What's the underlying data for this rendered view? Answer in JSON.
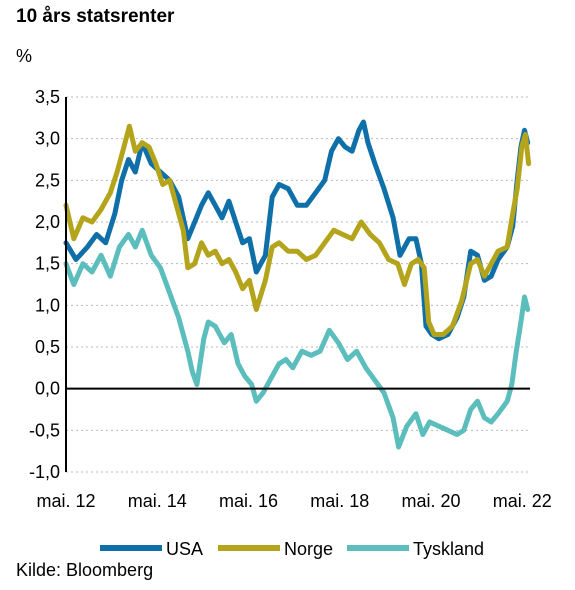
{
  "title": "10 års statsrenter",
  "unit": "%",
  "source": "Kilde: Bloomberg",
  "chart_data": {
    "type": "line",
    "title": "10 års statsrenter",
    "ylabel": "%",
    "xlabel": "",
    "ylim": [
      -1.0,
      3.5
    ],
    "xlim": [
      2012.33,
      2022.5
    ],
    "grid": "horizontal dashed",
    "legend": "bottom",
    "y_ticks": [
      "3,5",
      "3,0",
      "2,5",
      "2,0",
      "1,5",
      "1,0",
      "0,5",
      "0,0",
      "-0,5",
      "-1,0"
    ],
    "y_tick_values": [
      3.5,
      3.0,
      2.5,
      2.0,
      1.5,
      1.0,
      0.5,
      0.0,
      -0.5,
      -1.0
    ],
    "x_ticks": [
      "mai. 12",
      "mai. 14",
      "mai. 16",
      "mai. 18",
      "mai. 20",
      "mai. 22"
    ],
    "x_tick_values": [
      2012.33,
      2014.33,
      2016.33,
      2018.33,
      2020.33,
      2022.33
    ],
    "series": [
      {
        "name": "USA",
        "color": "#0f6fa8",
        "points": [
          [
            2012.33,
            1.75
          ],
          [
            2012.55,
            1.55
          ],
          [
            2012.8,
            1.7
          ],
          [
            2013.0,
            1.85
          ],
          [
            2013.2,
            1.75
          ],
          [
            2013.4,
            2.1
          ],
          [
            2013.55,
            2.5
          ],
          [
            2013.7,
            2.75
          ],
          [
            2013.85,
            2.6
          ],
          [
            2014.0,
            2.95
          ],
          [
            2014.2,
            2.7
          ],
          [
            2014.4,
            2.6
          ],
          [
            2014.6,
            2.5
          ],
          [
            2014.8,
            2.3
          ],
          [
            2015.0,
            1.8
          ],
          [
            2015.15,
            2.0
          ],
          [
            2015.3,
            2.2
          ],
          [
            2015.45,
            2.35
          ],
          [
            2015.6,
            2.2
          ],
          [
            2015.75,
            2.05
          ],
          [
            2015.9,
            2.25
          ],
          [
            2016.05,
            2.0
          ],
          [
            2016.2,
            1.75
          ],
          [
            2016.35,
            1.8
          ],
          [
            2016.5,
            1.4
          ],
          [
            2016.7,
            1.6
          ],
          [
            2016.85,
            2.3
          ],
          [
            2017.0,
            2.45
          ],
          [
            2017.2,
            2.4
          ],
          [
            2017.4,
            2.2
          ],
          [
            2017.6,
            2.2
          ],
          [
            2017.8,
            2.35
          ],
          [
            2018.0,
            2.5
          ],
          [
            2018.15,
            2.85
          ],
          [
            2018.3,
            3.0
          ],
          [
            2018.45,
            2.9
          ],
          [
            2018.6,
            2.85
          ],
          [
            2018.75,
            3.1
          ],
          [
            2018.85,
            3.2
          ],
          [
            2018.95,
            2.95
          ],
          [
            2019.1,
            2.7
          ],
          [
            2019.3,
            2.4
          ],
          [
            2019.5,
            2.05
          ],
          [
            2019.65,
            1.6
          ],
          [
            2019.85,
            1.8
          ],
          [
            2020.0,
            1.8
          ],
          [
            2020.12,
            1.5
          ],
          [
            2020.22,
            0.75
          ],
          [
            2020.35,
            0.65
          ],
          [
            2020.5,
            0.6
          ],
          [
            2020.7,
            0.65
          ],
          [
            2020.9,
            0.85
          ],
          [
            2021.05,
            1.1
          ],
          [
            2021.2,
            1.65
          ],
          [
            2021.35,
            1.6
          ],
          [
            2021.5,
            1.3
          ],
          [
            2021.65,
            1.35
          ],
          [
            2021.8,
            1.55
          ],
          [
            2022.0,
            1.7
          ],
          [
            2022.12,
            1.95
          ],
          [
            2022.22,
            2.5
          ],
          [
            2022.3,
            2.9
          ],
          [
            2022.38,
            3.1
          ],
          [
            2022.45,
            2.95
          ]
        ]
      },
      {
        "name": "Norge",
        "color": "#b4a41b",
        "points": [
          [
            2012.33,
            2.2
          ],
          [
            2012.5,
            1.8
          ],
          [
            2012.7,
            2.05
          ],
          [
            2012.9,
            2.0
          ],
          [
            2013.1,
            2.15
          ],
          [
            2013.3,
            2.35
          ],
          [
            2013.45,
            2.6
          ],
          [
            2013.6,
            2.9
          ],
          [
            2013.72,
            3.15
          ],
          [
            2013.85,
            2.85
          ],
          [
            2014.0,
            2.95
          ],
          [
            2014.15,
            2.9
          ],
          [
            2014.3,
            2.7
          ],
          [
            2014.45,
            2.45
          ],
          [
            2014.6,
            2.5
          ],
          [
            2014.75,
            2.2
          ],
          [
            2014.9,
            1.9
          ],
          [
            2015.0,
            1.45
          ],
          [
            2015.15,
            1.5
          ],
          [
            2015.3,
            1.75
          ],
          [
            2015.45,
            1.6
          ],
          [
            2015.6,
            1.65
          ],
          [
            2015.75,
            1.5
          ],
          [
            2015.9,
            1.55
          ],
          [
            2016.05,
            1.4
          ],
          [
            2016.2,
            1.2
          ],
          [
            2016.35,
            1.3
          ],
          [
            2016.5,
            0.95
          ],
          [
            2016.7,
            1.3
          ],
          [
            2016.85,
            1.7
          ],
          [
            2017.0,
            1.75
          ],
          [
            2017.2,
            1.65
          ],
          [
            2017.4,
            1.65
          ],
          [
            2017.6,
            1.55
          ],
          [
            2017.8,
            1.6
          ],
          [
            2018.0,
            1.75
          ],
          [
            2018.2,
            1.9
          ],
          [
            2018.4,
            1.85
          ],
          [
            2018.6,
            1.8
          ],
          [
            2018.8,
            2.0
          ],
          [
            2019.0,
            1.85
          ],
          [
            2019.2,
            1.75
          ],
          [
            2019.4,
            1.55
          ],
          [
            2019.6,
            1.5
          ],
          [
            2019.75,
            1.25
          ],
          [
            2019.9,
            1.5
          ],
          [
            2020.05,
            1.55
          ],
          [
            2020.18,
            1.45
          ],
          [
            2020.28,
            0.8
          ],
          [
            2020.4,
            0.65
          ],
          [
            2020.6,
            0.65
          ],
          [
            2020.8,
            0.75
          ],
          [
            2021.0,
            1.05
          ],
          [
            2021.2,
            1.5
          ],
          [
            2021.35,
            1.55
          ],
          [
            2021.5,
            1.35
          ],
          [
            2021.65,
            1.5
          ],
          [
            2021.8,
            1.65
          ],
          [
            2022.0,
            1.7
          ],
          [
            2022.12,
            2.1
          ],
          [
            2022.22,
            2.4
          ],
          [
            2022.32,
            2.9
          ],
          [
            2022.4,
            3.05
          ],
          [
            2022.47,
            2.7
          ]
        ]
      },
      {
        "name": "Tyskland",
        "color": "#5cbdbd",
        "points": [
          [
            2012.33,
            1.5
          ],
          [
            2012.5,
            1.25
          ],
          [
            2012.7,
            1.5
          ],
          [
            2012.9,
            1.4
          ],
          [
            2013.1,
            1.6
          ],
          [
            2013.3,
            1.35
          ],
          [
            2013.5,
            1.7
          ],
          [
            2013.7,
            1.85
          ],
          [
            2013.85,
            1.7
          ],
          [
            2014.0,
            1.9
          ],
          [
            2014.2,
            1.6
          ],
          [
            2014.4,
            1.45
          ],
          [
            2014.6,
            1.15
          ],
          [
            2014.8,
            0.85
          ],
          [
            2015.0,
            0.45
          ],
          [
            2015.1,
            0.2
          ],
          [
            2015.2,
            0.05
          ],
          [
            2015.35,
            0.6
          ],
          [
            2015.45,
            0.8
          ],
          [
            2015.6,
            0.75
          ],
          [
            2015.8,
            0.55
          ],
          [
            2015.95,
            0.65
          ],
          [
            2016.1,
            0.3
          ],
          [
            2016.25,
            0.15
          ],
          [
            2016.4,
            0.05
          ],
          [
            2016.5,
            -0.15
          ],
          [
            2016.65,
            -0.05
          ],
          [
            2016.8,
            0.1
          ],
          [
            2017.0,
            0.3
          ],
          [
            2017.15,
            0.35
          ],
          [
            2017.3,
            0.25
          ],
          [
            2017.5,
            0.45
          ],
          [
            2017.7,
            0.4
          ],
          [
            2017.9,
            0.45
          ],
          [
            2018.1,
            0.7
          ],
          [
            2018.3,
            0.55
          ],
          [
            2018.5,
            0.35
          ],
          [
            2018.7,
            0.45
          ],
          [
            2018.9,
            0.25
          ],
          [
            2019.1,
            0.1
          ],
          [
            2019.3,
            -0.05
          ],
          [
            2019.5,
            -0.35
          ],
          [
            2019.62,
            -0.7
          ],
          [
            2019.8,
            -0.45
          ],
          [
            2020.0,
            -0.3
          ],
          [
            2020.15,
            -0.55
          ],
          [
            2020.3,
            -0.4
          ],
          [
            2020.5,
            -0.45
          ],
          [
            2020.7,
            -0.5
          ],
          [
            2020.9,
            -0.55
          ],
          [
            2021.05,
            -0.5
          ],
          [
            2021.2,
            -0.25
          ],
          [
            2021.35,
            -0.15
          ],
          [
            2021.5,
            -0.35
          ],
          [
            2021.65,
            -0.4
          ],
          [
            2021.8,
            -0.3
          ],
          [
            2022.0,
            -0.15
          ],
          [
            2022.1,
            0.05
          ],
          [
            2022.2,
            0.45
          ],
          [
            2022.3,
            0.8
          ],
          [
            2022.38,
            1.1
          ],
          [
            2022.45,
            0.95
          ]
        ]
      }
    ]
  }
}
